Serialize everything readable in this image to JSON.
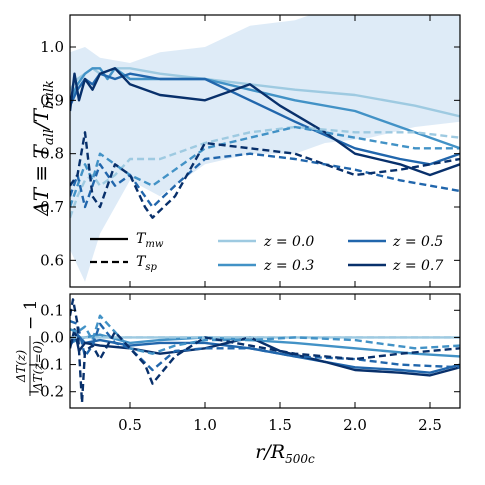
{
  "chart_data": [
    {
      "type": "line",
      "ylabel": "ΔT ≡ T_all/T_bulk",
      "ylabel_parts": {
        "delta": "ΔT ≡ T",
        "sub1": "all",
        "slash": "/T",
        "sub2": "bulk"
      },
      "xlim": [
        0.1,
        2.7
      ],
      "ylim": [
        0.55,
        1.06
      ],
      "xticks": [
        0.5,
        1.0,
        1.5,
        2.0,
        2.5
      ],
      "xtick_labels": [
        "0.5",
        "1.0",
        "1.5",
        "2.0",
        "2.5"
      ],
      "yticks": [
        0.6,
        0.7,
        0.8,
        0.9,
        1.0
      ],
      "ytick_labels": [
        "0.6",
        "0.7",
        "0.8",
        "0.9",
        "1.0"
      ],
      "grid": false,
      "legend_placement": "lower-center",
      "band": {
        "color": "#deebf7",
        "x": [
          0.1,
          0.2,
          0.3,
          0.5,
          0.7,
          1.0,
          1.3,
          1.6,
          1.8,
          2.1,
          2.4,
          2.7
        ],
        "upper": [
          0.99,
          1.0,
          0.98,
          0.97,
          0.99,
          1.0,
          1.04,
          1.05,
          1.07,
          1.06,
          1.07,
          1.07
        ],
        "lower": [
          0.62,
          0.56,
          0.65,
          0.75,
          0.72,
          0.78,
          0.8,
          0.8,
          0.82,
          0.83,
          0.85,
          0.86
        ]
      },
      "style_legend": [
        {
          "label": "T",
          "sub": "mw",
          "dash": "solid"
        },
        {
          "label": "T",
          "sub": "sp",
          "dash": "dashed"
        }
      ],
      "z_legend": [
        {
          "label": "z = 0.0",
          "color": "#9ecae1"
        },
        {
          "label": "z = 0.3",
          "color": "#4292c6"
        },
        {
          "label": "z = 0.5",
          "color": "#2166ac"
        },
        {
          "label": "z = 0.7",
          "color": "#08306b"
        }
      ],
      "series": [
        {
          "z": "0.0",
          "kind": "mw",
          "color": "#9ecae1",
          "dash": "solid",
          "x": [
            0.1,
            0.15,
            0.2,
            0.25,
            0.3,
            0.4,
            0.5,
            0.7,
            1.0,
            1.3,
            1.6,
            2.0,
            2.4,
            2.7
          ],
          "y": [
            0.92,
            0.94,
            0.95,
            0.96,
            0.95,
            0.96,
            0.96,
            0.95,
            0.94,
            0.93,
            0.92,
            0.91,
            0.89,
            0.87
          ]
        },
        {
          "z": "0.3",
          "kind": "mw",
          "color": "#4292c6",
          "dash": "solid",
          "x": [
            0.1,
            0.15,
            0.2,
            0.25,
            0.3,
            0.35,
            0.4,
            0.5,
            0.7,
            1.0,
            1.3,
            1.6,
            2.0,
            2.3,
            2.7
          ],
          "y": [
            0.9,
            0.93,
            0.95,
            0.96,
            0.96,
            0.94,
            0.96,
            0.94,
            0.94,
            0.94,
            0.92,
            0.9,
            0.88,
            0.85,
            0.81
          ]
        },
        {
          "z": "0.5",
          "kind": "mw",
          "color": "#2166ac",
          "dash": "solid",
          "x": [
            0.1,
            0.15,
            0.2,
            0.25,
            0.3,
            0.4,
            0.5,
            0.7,
            1.0,
            1.3,
            1.6,
            2.0,
            2.3,
            2.5,
            2.7
          ],
          "y": [
            0.89,
            0.92,
            0.94,
            0.93,
            0.95,
            0.94,
            0.95,
            0.94,
            0.94,
            0.9,
            0.86,
            0.81,
            0.79,
            0.78,
            0.8
          ]
        },
        {
          "z": "0.7",
          "kind": "mw",
          "color": "#08306b",
          "dash": "solid",
          "x": [
            0.1,
            0.13,
            0.16,
            0.2,
            0.25,
            0.3,
            0.4,
            0.5,
            0.7,
            1.0,
            1.3,
            1.5,
            1.8,
            2.0,
            2.3,
            2.5,
            2.7
          ],
          "y": [
            0.88,
            0.95,
            0.9,
            0.94,
            0.92,
            0.95,
            0.96,
            0.93,
            0.91,
            0.9,
            0.93,
            0.89,
            0.84,
            0.8,
            0.78,
            0.76,
            0.78
          ]
        },
        {
          "z": "0.0",
          "kind": "sp",
          "color": "#9ecae1",
          "dash": "dashed",
          "x": [
            0.1,
            0.15,
            0.2,
            0.25,
            0.3,
            0.4,
            0.5,
            0.7,
            1.0,
            1.3,
            1.6,
            2.0,
            2.4,
            2.7
          ],
          "y": [
            0.68,
            0.72,
            0.75,
            0.76,
            0.74,
            0.76,
            0.79,
            0.79,
            0.82,
            0.84,
            0.85,
            0.84,
            0.84,
            0.83
          ]
        },
        {
          "z": "0.3",
          "kind": "sp",
          "color": "#4292c6",
          "dash": "dashed",
          "x": [
            0.1,
            0.15,
            0.2,
            0.25,
            0.3,
            0.4,
            0.5,
            0.65,
            0.8,
            1.0,
            1.3,
            1.6,
            2.0,
            2.4,
            2.7
          ],
          "y": [
            0.7,
            0.74,
            0.78,
            0.75,
            0.8,
            0.78,
            0.76,
            0.74,
            0.77,
            0.81,
            0.83,
            0.85,
            0.83,
            0.81,
            0.81
          ]
        },
        {
          "z": "0.5",
          "kind": "sp",
          "color": "#2166ac",
          "dash": "dashed",
          "x": [
            0.1,
            0.15,
            0.2,
            0.25,
            0.3,
            0.4,
            0.5,
            0.65,
            0.8,
            1.0,
            1.3,
            1.6,
            2.0,
            2.3,
            2.7
          ],
          "y": [
            0.72,
            0.76,
            0.7,
            0.74,
            0.78,
            0.74,
            0.76,
            0.7,
            0.74,
            0.79,
            0.8,
            0.79,
            0.77,
            0.75,
            0.73
          ]
        },
        {
          "z": "0.7",
          "kind": "sp",
          "color": "#08306b",
          "dash": "dashed",
          "x": [
            0.1,
            0.15,
            0.2,
            0.25,
            0.3,
            0.4,
            0.5,
            0.6,
            0.65,
            0.8,
            1.0,
            1.3,
            1.6,
            2.0,
            2.3,
            2.7
          ],
          "y": [
            0.74,
            0.76,
            0.84,
            0.72,
            0.7,
            0.78,
            0.76,
            0.7,
            0.68,
            0.72,
            0.82,
            0.81,
            0.8,
            0.76,
            0.77,
            0.79
          ]
        }
      ]
    },
    {
      "type": "line",
      "ylabel_parts": {
        "num": "ΔT(z)",
        "den": "ΔT(z=0)",
        "minus": "− 1"
      },
      "xlabel_parts": {
        "r": "r/R",
        "sub": "500c"
      },
      "xlim": [
        0.1,
        2.7
      ],
      "ylim": [
        -0.26,
        0.16
      ],
      "xticks": [
        0.5,
        1.0,
        1.5,
        2.0,
        2.5
      ],
      "xtick_labels": [
        "0.5",
        "1.0",
        "1.5",
        "2.0",
        "2.5"
      ],
      "yticks": [
        -0.2,
        -0.1,
        0.0,
        0.1
      ],
      "ytick_labels": [
        "−0.2",
        "−0.1",
        "0.0",
        "0.1"
      ],
      "grid": false,
      "series": [
        {
          "z": "0.0",
          "kind": "mw",
          "color": "#9ecae1",
          "dash": "solid",
          "x": [
            0.1,
            2.7
          ],
          "y": [
            0.0,
            0.0
          ]
        },
        {
          "z": "0.3",
          "kind": "mw",
          "color": "#4292c6",
          "dash": "solid",
          "x": [
            0.1,
            0.15,
            0.2,
            0.3,
            0.5,
            0.7,
            1.0,
            1.3,
            1.6,
            2.0,
            2.4,
            2.7
          ],
          "y": [
            -0.02,
            -0.01,
            0.0,
            0.01,
            -0.02,
            -0.01,
            0.0,
            -0.01,
            -0.02,
            -0.04,
            -0.06,
            -0.07
          ]
        },
        {
          "z": "0.5",
          "kind": "mw",
          "color": "#2166ac",
          "dash": "solid",
          "x": [
            0.1,
            0.15,
            0.2,
            0.3,
            0.5,
            0.7,
            1.0,
            1.3,
            1.6,
            2.0,
            2.3,
            2.5,
            2.7
          ],
          "y": [
            -0.03,
            0.01,
            -0.02,
            -0.01,
            -0.03,
            -0.02,
            -0.02,
            -0.04,
            -0.07,
            -0.11,
            -0.12,
            -0.13,
            -0.1
          ]
        },
        {
          "z": "0.7",
          "kind": "mw",
          "color": "#08306b",
          "dash": "solid",
          "x": [
            0.1,
            0.13,
            0.16,
            0.2,
            0.3,
            0.5,
            0.7,
            1.0,
            1.3,
            1.5,
            1.8,
            2.0,
            2.3,
            2.5,
            2.7
          ],
          "y": [
            -0.04,
            0.03,
            -0.05,
            -0.02,
            -0.03,
            -0.04,
            -0.06,
            -0.04,
            0.0,
            -0.05,
            -0.09,
            -0.12,
            -0.13,
            -0.14,
            -0.11
          ]
        },
        {
          "z": "0.0",
          "kind": "sp",
          "color": "#9ecae1",
          "dash": "dashed",
          "x": [
            0.1,
            2.7
          ],
          "y": [
            0.0,
            0.0
          ]
        },
        {
          "z": "0.3",
          "kind": "sp",
          "color": "#4292c6",
          "dash": "dashed",
          "x": [
            0.1,
            0.15,
            0.2,
            0.25,
            0.3,
            0.4,
            0.5,
            0.65,
            0.8,
            1.0,
            1.3,
            1.6,
            2.0,
            2.4,
            2.7
          ],
          "y": [
            0.03,
            0.02,
            0.04,
            -0.01,
            0.08,
            0.02,
            -0.04,
            -0.06,
            -0.03,
            -0.01,
            -0.01,
            0.0,
            -0.01,
            -0.04,
            -0.03
          ]
        },
        {
          "z": "0.5",
          "kind": "sp",
          "color": "#2166ac",
          "dash": "dashed",
          "x": [
            0.1,
            0.15,
            0.2,
            0.25,
            0.3,
            0.4,
            0.5,
            0.65,
            0.8,
            1.0,
            1.3,
            1.6,
            2.0,
            2.3,
            2.7
          ],
          "y": [
            0.06,
            0.05,
            -0.07,
            -0.03,
            0.05,
            -0.02,
            -0.04,
            -0.12,
            -0.05,
            -0.04,
            -0.04,
            -0.07,
            -0.08,
            -0.1,
            -0.11
          ]
        },
        {
          "z": "0.7",
          "kind": "sp",
          "color": "#08306b",
          "dash": "dashed",
          "x": [
            0.1,
            0.12,
            0.15,
            0.18,
            0.2,
            0.25,
            0.3,
            0.4,
            0.5,
            0.6,
            0.65,
            0.8,
            1.0,
            1.3,
            1.6,
            2.0,
            2.3,
            2.7
          ],
          "y": [
            0.08,
            0.14,
            0.05,
            -0.24,
            -0.05,
            -0.03,
            -0.08,
            0.02,
            -0.04,
            -0.1,
            -0.17,
            -0.07,
            0.0,
            -0.03,
            -0.06,
            -0.08,
            -0.06,
            -0.04
          ]
        }
      ]
    }
  ]
}
